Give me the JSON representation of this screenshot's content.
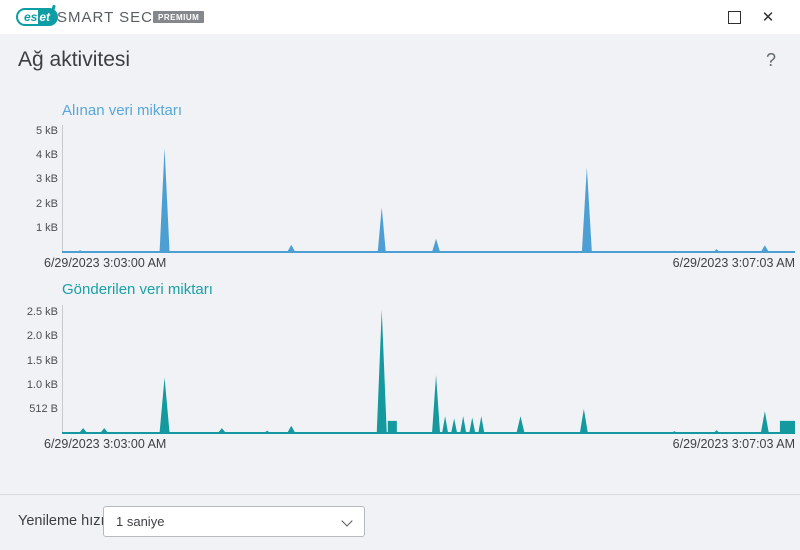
{
  "titlebar": {
    "logo_left": "es",
    "logo_right": "et",
    "product_name": "SMART SECURITY",
    "edition_badge": "PREMIUM",
    "close_icon": "✕"
  },
  "header": {
    "title": "Ağ aktivitesi",
    "help_icon": "?"
  },
  "chart_data": [
    {
      "type": "area",
      "title": "Alınan veri miktarı",
      "unit": "kB",
      "color": "#4d9fd3",
      "title_color": "#59a7d8",
      "x_start_label": "6/29/2023 3:03:00 AM",
      "x_end_label": "6/29/2023 3:07:03 AM",
      "duration_seconds": 243,
      "ylim": [
        0,
        5.25
      ],
      "grid": false,
      "legend": "none",
      "yticks": [
        {
          "label": "5 kB",
          "value": 5
        },
        {
          "label": "4 kB",
          "value": 4
        },
        {
          "label": "3 kB",
          "value": 3
        },
        {
          "label": "2 kB",
          "value": 2
        },
        {
          "label": "1 kB",
          "value": 1
        }
      ],
      "points": [
        {
          "t": 6,
          "v": 0.08,
          "w": 3
        },
        {
          "t": 34,
          "v": 4.3,
          "w": 5
        },
        {
          "t": 76,
          "v": 0.3,
          "w": 4
        },
        {
          "t": 106,
          "v": 1.85,
          "w": 4
        },
        {
          "t": 124,
          "v": 0.55,
          "w": 4
        },
        {
          "t": 174,
          "v": 3.5,
          "w": 5
        },
        {
          "t": 203,
          "v": 0.05,
          "w": 3
        },
        {
          "t": 217,
          "v": 0.12,
          "w": 3
        },
        {
          "t": 233,
          "v": 0.28,
          "w": 4
        }
      ]
    },
    {
      "type": "area",
      "title": "Gönderilen veri miktarı",
      "unit": "kB",
      "color": "#13999e",
      "title_color": "#1aa1a6",
      "x_start_label": "6/29/2023 3:03:00 AM",
      "x_end_label": "6/29/2023 3:07:03 AM",
      "duration_seconds": 243,
      "ylim": [
        0,
        2.65
      ],
      "grid": false,
      "legend": "none",
      "yticks": [
        {
          "label": "2.5 kB",
          "value": 2.5
        },
        {
          "label": "2.0 kB",
          "value": 2.0
        },
        {
          "label": "1.5 kB",
          "value": 1.5
        },
        {
          "label": "1.0 kB",
          "value": 1.0
        },
        {
          "label": "512 B",
          "value": 0.5
        }
      ],
      "points": [
        {
          "t": 7,
          "v": 0.1,
          "w": 4
        },
        {
          "t": 14,
          "v": 0.1,
          "w": 4
        },
        {
          "t": 34,
          "v": 1.15,
          "w": 5
        },
        {
          "t": 53,
          "v": 0.1,
          "w": 4
        },
        {
          "t": 68,
          "v": 0.05,
          "w": 3
        },
        {
          "t": 76,
          "v": 0.15,
          "w": 4
        },
        {
          "t": 106,
          "v": 2.55,
          "w": 5
        },
        {
          "t": 108,
          "t2": 111,
          "v": 0.25,
          "shape": "rect"
        },
        {
          "t": 124,
          "v": 1.2,
          "w": 4
        },
        {
          "t": 127,
          "v": 0.35,
          "w": 3
        },
        {
          "t": 130,
          "v": 0.3,
          "w": 3
        },
        {
          "t": 133,
          "v": 0.35,
          "w": 3
        },
        {
          "t": 136,
          "v": 0.32,
          "w": 3
        },
        {
          "t": 139,
          "v": 0.35,
          "w": 3
        },
        {
          "t": 152,
          "v": 0.35,
          "w": 4
        },
        {
          "t": 173,
          "v": 0.5,
          "w": 4
        },
        {
          "t": 203,
          "v": 0.04,
          "w": 3
        },
        {
          "t": 217,
          "v": 0.06,
          "w": 3
        },
        {
          "t": 233,
          "v": 0.45,
          "w": 4
        },
        {
          "t": 238,
          "t2": 243,
          "v": 0.25,
          "shape": "rect"
        }
      ]
    }
  ],
  "footer": {
    "label": "Yenileme hızı",
    "refresh_rate_value": "1 saniye"
  }
}
